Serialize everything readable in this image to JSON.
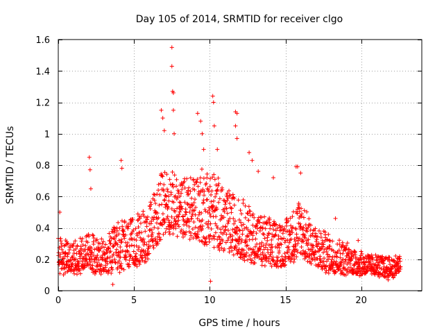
{
  "chart_data": {
    "type": "scatter",
    "title": "Day 105 of 2014, SRMTID for receiver clgo",
    "xlabel": "GPS time / hours",
    "ylabel": "SRMTID / TECUs",
    "xlim": [
      0,
      24
    ],
    "ylim": [
      0,
      1.6
    ],
    "xticks": [
      0,
      5,
      10,
      15,
      20
    ],
    "yticks": [
      0,
      0.2,
      0.4,
      0.6,
      0.8,
      1,
      1.2,
      1.4,
      1.6
    ],
    "xtick_labels": [
      "0",
      "5",
      "10",
      "15",
      "20"
    ],
    "ytick_labels": [
      "0",
      "0.2",
      "0.4",
      "0.6",
      "0.8",
      "1",
      "1.2",
      "1.4",
      "1.6"
    ],
    "grid": true,
    "marker": "+",
    "color": "#ff0000",
    "data_extent_x": [
      0,
      22.6
    ],
    "profile": {
      "description": "approximate envelope of the scatter (hour: [typical low, typical high])",
      "hours": [
        0,
        1,
        2,
        3,
        4,
        5,
        6,
        7,
        8,
        9,
        10,
        11,
        12,
        13,
        14,
        15,
        16,
        17,
        18,
        19,
        20,
        21,
        22,
        22.6
      ],
      "low": [
        0.08,
        0.08,
        0.09,
        0.07,
        0.07,
        0.1,
        0.15,
        0.3,
        0.3,
        0.25,
        0.2,
        0.2,
        0.15,
        0.12,
        0.1,
        0.12,
        0.15,
        0.1,
        0.08,
        0.08,
        0.08,
        0.08,
        0.06,
        0.1
      ],
      "high": [
        0.35,
        0.3,
        0.4,
        0.3,
        0.45,
        0.45,
        0.55,
        0.8,
        0.7,
        0.75,
        0.8,
        0.65,
        0.6,
        0.5,
        0.45,
        0.45,
        0.6,
        0.4,
        0.35,
        0.3,
        0.25,
        0.22,
        0.22,
        0.22
      ]
    },
    "notable_points": [
      {
        "x": 0.1,
        "y": 0.5
      },
      {
        "x": 2.05,
        "y": 0.85
      },
      {
        "x": 2.1,
        "y": 0.77
      },
      {
        "x": 2.15,
        "y": 0.65
      },
      {
        "x": 4.15,
        "y": 0.83
      },
      {
        "x": 4.2,
        "y": 0.78
      },
      {
        "x": 6.8,
        "y": 1.15
      },
      {
        "x": 6.9,
        "y": 1.1
      },
      {
        "x": 7.0,
        "y": 1.02
      },
      {
        "x": 7.5,
        "y": 1.55
      },
      {
        "x": 7.5,
        "y": 1.43
      },
      {
        "x": 7.55,
        "y": 1.27
      },
      {
        "x": 7.6,
        "y": 1.26
      },
      {
        "x": 7.6,
        "y": 1.15
      },
      {
        "x": 7.65,
        "y": 1.0
      },
      {
        "x": 9.2,
        "y": 1.13
      },
      {
        "x": 9.4,
        "y": 1.08
      },
      {
        "x": 9.5,
        "y": 1.0
      },
      {
        "x": 9.6,
        "y": 0.9
      },
      {
        "x": 10.2,
        "y": 1.24
      },
      {
        "x": 10.25,
        "y": 1.2
      },
      {
        "x": 10.3,
        "y": 1.05
      },
      {
        "x": 10.5,
        "y": 0.9
      },
      {
        "x": 11.7,
        "y": 1.14
      },
      {
        "x": 11.8,
        "y": 1.13
      },
      {
        "x": 11.7,
        "y": 1.05
      },
      {
        "x": 11.8,
        "y": 0.97
      },
      {
        "x": 12.6,
        "y": 0.88
      },
      {
        "x": 12.8,
        "y": 0.83
      },
      {
        "x": 13.2,
        "y": 0.76
      },
      {
        "x": 14.2,
        "y": 0.72
      },
      {
        "x": 15.7,
        "y": 0.79
      },
      {
        "x": 15.8,
        "y": 0.79
      },
      {
        "x": 16.0,
        "y": 0.75
      },
      {
        "x": 18.3,
        "y": 0.46
      },
      {
        "x": 19.8,
        "y": 0.32
      },
      {
        "x": 10.05,
        "y": 0.06
      },
      {
        "x": 3.6,
        "y": 0.04
      }
    ]
  }
}
